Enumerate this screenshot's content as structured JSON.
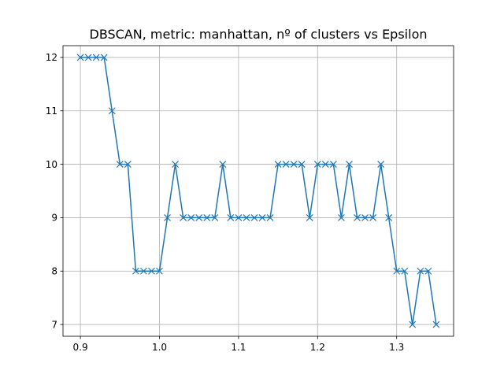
{
  "chart_data": {
    "type": "line",
    "title": "DBSCAN, metric: manhattan, nº of clusters vs Epsilon",
    "xlabel": "",
    "ylabel": "",
    "xlim": [
      0.878,
      1.372
    ],
    "ylim": [
      6.78,
      12.22
    ],
    "xticks": [
      0.9,
      1.0,
      1.1,
      1.2,
      1.3
    ],
    "xtick_labels": [
      "0.9",
      "1.0",
      "1.1",
      "1.2",
      "1.3"
    ],
    "yticks": [
      7,
      8,
      9,
      10,
      11,
      12
    ],
    "ytick_labels": [
      "7",
      "8",
      "9",
      "10",
      "11",
      "12"
    ],
    "grid": true,
    "marker": "x",
    "color": "#1f77b4",
    "x": [
      0.9,
      0.91,
      0.92,
      0.93,
      0.94,
      0.95,
      0.96,
      0.97,
      0.98,
      0.99,
      1.0,
      1.01,
      1.02,
      1.03,
      1.04,
      1.05,
      1.06,
      1.07,
      1.08,
      1.09,
      1.1,
      1.11,
      1.12,
      1.13,
      1.14,
      1.15,
      1.16,
      1.17,
      1.18,
      1.19,
      1.2,
      1.21,
      1.22,
      1.23,
      1.24,
      1.25,
      1.26,
      1.27,
      1.28,
      1.29,
      1.3,
      1.31,
      1.32,
      1.33,
      1.34,
      1.35
    ],
    "y": [
      12,
      12,
      12,
      12,
      11,
      10,
      10,
      8,
      8,
      8,
      8,
      9,
      10,
      9,
      9,
      9,
      9,
      9,
      10,
      9,
      9,
      9,
      9,
      9,
      9,
      10,
      10,
      10,
      10,
      9,
      10,
      10,
      10,
      9,
      10,
      9,
      9,
      9,
      10,
      9,
      8,
      8,
      7,
      8,
      8,
      7
    ]
  }
}
